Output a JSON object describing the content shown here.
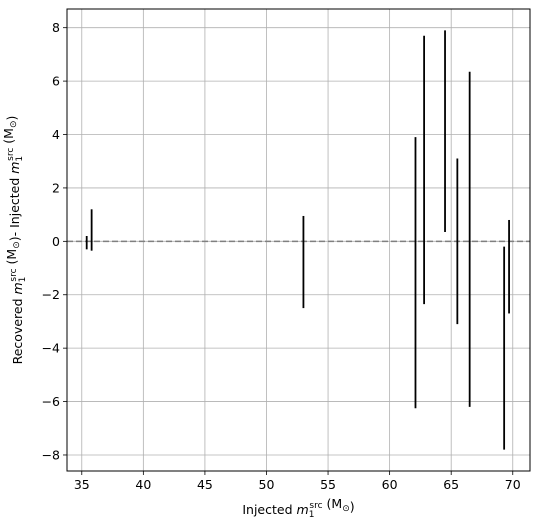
{
  "chart_data": {
    "type": "errorbar",
    "title": "",
    "xlabel_parts": [
      "Injected ",
      "m",
      "1",
      "src",
      " (M",
      "⊙",
      ")"
    ],
    "ylabel_parts": [
      "Recovered ",
      "m",
      "1",
      "src",
      " (M",
      "⊙",
      ")- Injected ",
      "m",
      "1",
      "src",
      " (M",
      "⊙",
      ")"
    ],
    "xlim": [
      33.8,
      71.4
    ],
    "ylim": [
      -8.6,
      8.7
    ],
    "xticks": [
      35,
      40,
      45,
      50,
      55,
      60,
      65,
      70
    ],
    "yticks": [
      -8,
      -6,
      -4,
      -2,
      0,
      2,
      4,
      6,
      8
    ],
    "grid": true,
    "reference_line": {
      "y": 0,
      "style": "dashed",
      "color": "#808080"
    },
    "series": [
      {
        "color": "#000000",
        "points": [
          {
            "x": 35.4,
            "y_low": -0.3,
            "y_high": 0.2
          },
          {
            "x": 35.8,
            "y_low": -0.35,
            "y_high": 1.2
          },
          {
            "x": 53.0,
            "y_low": -2.5,
            "y_high": 0.95
          },
          {
            "x": 62.1,
            "y_low": -6.25,
            "y_high": 3.9
          },
          {
            "x": 62.8,
            "y_low": -2.35,
            "y_high": 7.7
          },
          {
            "x": 64.5,
            "y_low": 0.35,
            "y_high": 7.9
          },
          {
            "x": 65.5,
            "y_low": -3.1,
            "y_high": 3.1
          },
          {
            "x": 66.5,
            "y_low": -6.2,
            "y_high": 6.35
          },
          {
            "x": 69.3,
            "y_low": -7.8,
            "y_high": -0.2
          },
          {
            "x": 69.7,
            "y_low": -2.7,
            "y_high": 0.8
          }
        ]
      }
    ]
  }
}
